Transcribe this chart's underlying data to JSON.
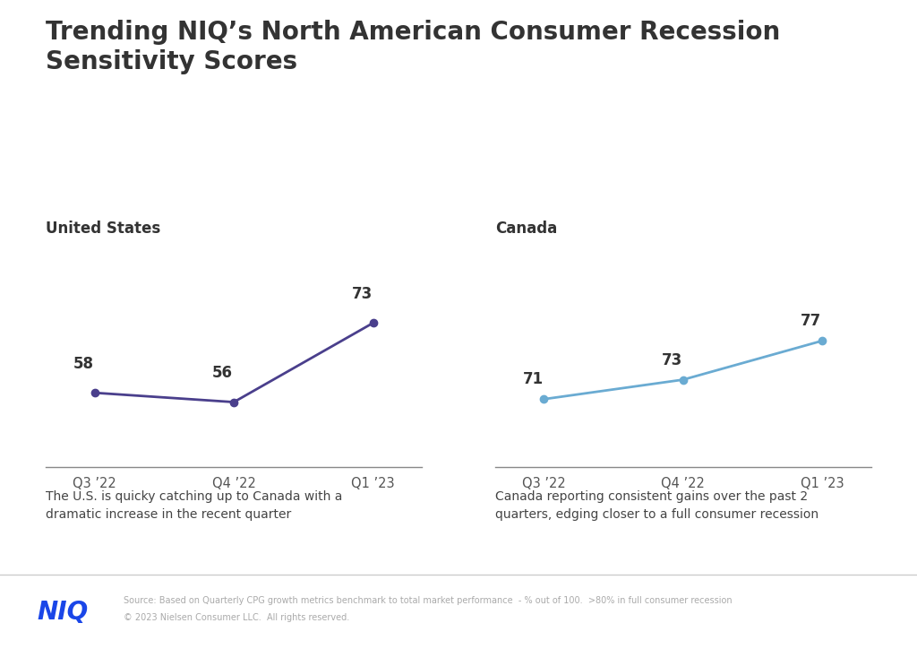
{
  "title": "Trending NIQ’s North American Consumer Recession\nSensitivity Scores",
  "title_fontsize": 20,
  "title_color": "#333333",
  "background_color": "#ffffff",
  "us_title": "United States",
  "canada_title": "Canada",
  "subtitle_fontsize": 12,
  "subtitle_color": "#333333",
  "x_labels": [
    "Q3 ’22",
    "Q4 ’22",
    "Q1 ’23"
  ],
  "x_values": [
    0,
    1,
    2
  ],
  "us_values": [
    58,
    56,
    73
  ],
  "us_color": "#4a3f8c",
  "us_linewidth": 2.0,
  "us_markersize": 6,
  "canada_values": [
    71,
    73,
    77
  ],
  "canada_color": "#6aabd2",
  "canada_linewidth": 2.0,
  "canada_markersize": 6,
  "us_annotation": "The U.S. is quicky catching up to Canada with a\ndramatic increase in the recent quarter",
  "canada_annotation": "Canada reporting consistent gains over the past 2\nquarters, edging closer to a full consumer recession",
  "annotation_fontsize": 10,
  "annotation_color": "#444444",
  "source_line1": "Source: Based on Quarterly CPG growth metrics benchmark to total market performance  - % out of 100.  >80% in full consumer recession",
  "source_line2": "© 2023 Nielsen Consumer LLC.  All rights reserved.",
  "source_fontsize": 7,
  "source_color": "#aaaaaa",
  "niq_text": "NIQ",
  "niq_color": "#1a46e8",
  "niq_fontsize": 20,
  "value_fontsize": 12,
  "value_color": "#333333",
  "footer_separator_color": "#cccccc",
  "axis_line_color": "#888888"
}
